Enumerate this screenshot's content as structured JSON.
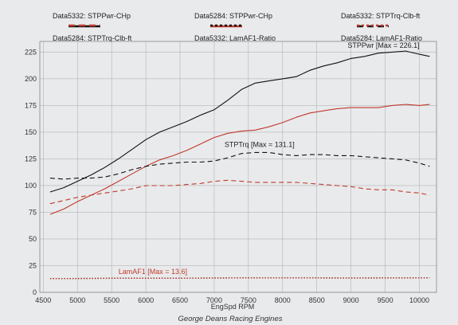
{
  "chart_data": {
    "type": "line",
    "xlabel": "EngSpd RPM",
    "credit": "George Deans Racing Engines",
    "xlim": [
      4450,
      10250
    ],
    "ylim": [
      0,
      235
    ],
    "xticks": [
      4500,
      5000,
      5500,
      6000,
      6500,
      7000,
      7500,
      8000,
      8500,
      9000,
      9500,
      10000
    ],
    "yticks": [
      0,
      25,
      50,
      75,
      100,
      125,
      150,
      175,
      200,
      225
    ],
    "grid": true,
    "legend": [
      {
        "label": "Data5332: STPPwr-CHp",
        "color": "#111111",
        "dash": "solid"
      },
      {
        "label": "Data5284: STPPwr-CHp",
        "color": "#c0392b",
        "dash": "solid"
      },
      {
        "label": "Data5332: STPTrq-Clb-ft",
        "color": "#111111",
        "dash": "dashed"
      },
      {
        "label": "Data5284: STPTrq-Clb-ft",
        "color": "#c0392b",
        "dash": "dashed"
      },
      {
        "label": "Data5332: LamAF1-Ratio",
        "color": "#111111",
        "dash": "dotted"
      },
      {
        "label": "Data5284: LamAF1-Ratio",
        "color": "#c0392b",
        "dash": "dotted"
      }
    ],
    "annotations": [
      {
        "text": "STPPwr [Max = 226.1]",
        "x": 8950,
        "y": 229
      },
      {
        "text": "STPTrq [Max = 131.1]",
        "x": 7150,
        "y": 136
      },
      {
        "text": "LamAF1 [Max = 13.6]",
        "x": 5600,
        "y": 17,
        "color": "#c0392b"
      }
    ],
    "series": [
      {
        "color": "#111111",
        "dash": "solid",
        "x": [
          4600,
          4800,
          5000,
          5200,
          5400,
          5600,
          5800,
          6000,
          6200,
          6400,
          6600,
          6800,
          7000,
          7200,
          7400,
          7600,
          7800,
          8000,
          8200,
          8400,
          8600,
          8800,
          9000,
          9200,
          9400,
          9600,
          9800,
          10000,
          10150
        ],
        "y": [
          94,
          98,
          104,
          110,
          117,
          125,
          134,
          143,
          150,
          155,
          160,
          166,
          171,
          180,
          190,
          196,
          198,
          200,
          202,
          208,
          212,
          215,
          219,
          221,
          224,
          225,
          226,
          223,
          221
        ]
      },
      {
        "color": "#c0392b",
        "dash": "solid",
        "x": [
          4600,
          4800,
          5000,
          5200,
          5400,
          5600,
          5800,
          6000,
          6200,
          6400,
          6600,
          6800,
          7000,
          7200,
          7400,
          7600,
          7800,
          8000,
          8200,
          8400,
          8600,
          8800,
          9000,
          9200,
          9400,
          9600,
          9800,
          10000,
          10150
        ],
        "y": [
          73,
          78,
          85,
          91,
          97,
          104,
          111,
          118,
          124,
          128,
          133,
          139,
          145,
          149,
          151,
          152,
          155,
          159,
          164,
          168,
          170,
          172,
          173,
          173,
          173,
          175,
          176,
          175,
          176
        ]
      },
      {
        "color": "#111111",
        "dash": "dashed",
        "x": [
          4600,
          4800,
          5000,
          5200,
          5400,
          5600,
          5800,
          6000,
          6200,
          6400,
          6600,
          6800,
          7000,
          7200,
          7400,
          7600,
          7800,
          8000,
          8200,
          8400,
          8600,
          8800,
          9000,
          9200,
          9400,
          9600,
          9800,
          10000,
          10150
        ],
        "y": [
          107,
          106,
          107,
          107,
          108,
          111,
          115,
          118,
          120,
          121,
          122,
          122,
          123,
          126,
          130,
          131,
          131,
          129,
          128,
          129,
          129,
          128,
          128,
          127,
          126,
          125,
          124,
          121,
          118
        ]
      },
      {
        "color": "#c0392b",
        "dash": "dashed",
        "x": [
          4600,
          4800,
          5000,
          5200,
          5400,
          5600,
          5800,
          6000,
          6200,
          6400,
          6600,
          6800,
          7000,
          7200,
          7400,
          7600,
          7800,
          8000,
          8200,
          8400,
          8600,
          8800,
          9000,
          9200,
          9400,
          9600,
          9800,
          10000,
          10150
        ],
        "y": [
          83,
          86,
          89,
          91,
          93,
          95,
          97,
          100,
          100,
          100,
          101,
          102,
          104,
          105,
          104,
          103,
          103,
          103,
          103,
          102,
          101,
          100,
          99,
          97,
          96,
          96,
          94,
          93,
          91
        ]
      },
      {
        "color": "#111111",
        "dash": "dotted",
        "x": [
          4600,
          5000,
          5500,
          6000,
          6500,
          7000,
          7500,
          8000,
          8500,
          9000,
          9500,
          10000,
          10150
        ],
        "y": [
          13,
          13,
          13.2,
          13.2,
          13.3,
          13.4,
          13.6,
          13.5,
          13.5,
          13.4,
          13.5,
          13.5,
          13.5
        ]
      },
      {
        "color": "#c0392b",
        "dash": "dotted",
        "x": [
          4600,
          5000,
          5500,
          6000,
          6500,
          7000,
          7500,
          8000,
          8500,
          9000,
          9500,
          10000,
          10150
        ],
        "y": [
          12.9,
          13,
          13.1,
          13.2,
          13.3,
          13.4,
          13.6,
          13.5,
          13.5,
          13.4,
          13.4,
          13.5,
          13.5
        ]
      }
    ]
  }
}
